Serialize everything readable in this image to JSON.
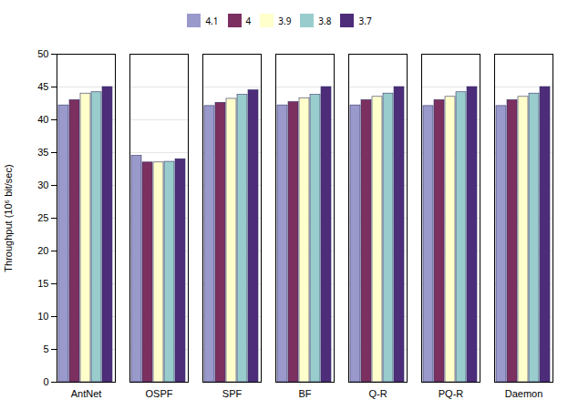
{
  "chart_data": {
    "type": "bar",
    "categories": [
      "AntNet",
      "OSPF",
      "SPF",
      "BF",
      "Q-R",
      "PQ-R",
      "Daemon"
    ],
    "series": [
      {
        "name": "4.1",
        "color": "#9999cc",
        "values": [
          42.2,
          34.5,
          42.1,
          42.2,
          42.2,
          42.1,
          42.1
        ]
      },
      {
        "name": "4",
        "color": "#7b3060",
        "values": [
          43.0,
          33.5,
          42.6,
          42.7,
          43.0,
          43.0,
          43.0
        ]
      },
      {
        "name": "3.9",
        "color": "#ffffcc",
        "values": [
          44.0,
          33.5,
          43.2,
          43.3,
          43.5,
          43.5,
          43.5
        ]
      },
      {
        "name": "3.8",
        "color": "#99cccc",
        "values": [
          44.2,
          33.6,
          43.8,
          43.8,
          44.0,
          44.2,
          44.0
        ]
      },
      {
        "name": "3.7",
        "color": "#4d2d7a",
        "values": [
          45.0,
          34.0,
          44.5,
          45.0,
          45.0,
          45.0,
          45.0
        ]
      }
    ],
    "ylabel": "Throughput (10⁶ bit/sec)",
    "ylim": [
      0,
      50
    ],
    "yticks": [
      0,
      5,
      10,
      15,
      20,
      25,
      30,
      35,
      40,
      45,
      50
    ],
    "grid": true,
    "legend": "top"
  }
}
